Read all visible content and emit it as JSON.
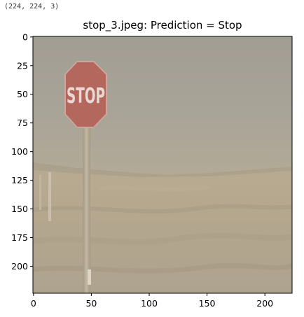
{
  "output": {
    "shape_text": "(224, 224, 3)"
  },
  "figure": {
    "title": "stop_3.jpeg: Prediction = Stop",
    "sign_text": "STOP",
    "x_ticks": [
      "0",
      "50",
      "100",
      "150",
      "200"
    ],
    "y_ticks": [
      "0",
      "25",
      "50",
      "75",
      "100",
      "125",
      "150",
      "175",
      "200"
    ],
    "x_range": [
      -0.5,
      223.5
    ],
    "y_range": [
      -0.5,
      223.5
    ],
    "colors": {
      "sky": "#a5a095",
      "ground": "#b4a88f",
      "sign": "#b46a60",
      "pole": "#b7ab95",
      "frame": "#000000"
    }
  }
}
